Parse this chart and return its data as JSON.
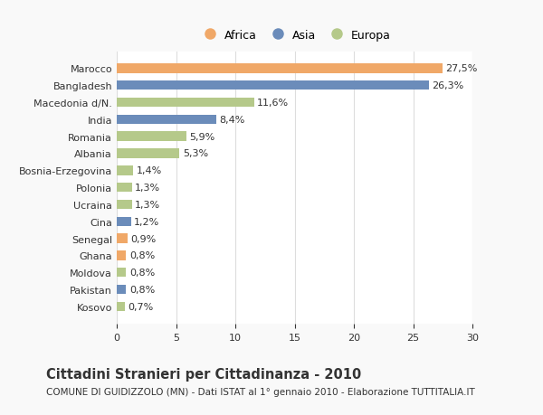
{
  "categories": [
    "Kosovo",
    "Pakistan",
    "Moldova",
    "Ghana",
    "Senegal",
    "Cina",
    "Ucraina",
    "Polonia",
    "Bosnia-Erzegovina",
    "Albania",
    "Romania",
    "India",
    "Macedonia d/N.",
    "Bangladesh",
    "Marocco"
  ],
  "values": [
    0.7,
    0.8,
    0.8,
    0.8,
    0.9,
    1.2,
    1.3,
    1.3,
    1.4,
    5.3,
    5.9,
    8.4,
    11.6,
    26.3,
    27.5
  ],
  "labels": [
    "0,7%",
    "0,8%",
    "0,8%",
    "0,8%",
    "0,9%",
    "1,2%",
    "1,3%",
    "1,3%",
    "1,4%",
    "5,3%",
    "5,9%",
    "8,4%",
    "11,6%",
    "26,3%",
    "27,5%"
  ],
  "colors": [
    "#b5c98a",
    "#6b8cba",
    "#b5c98a",
    "#f0a868",
    "#f0a868",
    "#6b8cba",
    "#b5c98a",
    "#b5c98a",
    "#b5c98a",
    "#b5c98a",
    "#b5c98a",
    "#6b8cba",
    "#b5c98a",
    "#6b8cba",
    "#f0a868"
  ],
  "continent": [
    "Europa",
    "Asia",
    "Europa",
    "Africa",
    "Africa",
    "Asia",
    "Europa",
    "Europa",
    "Europa",
    "Europa",
    "Europa",
    "Asia",
    "Europa",
    "Asia",
    "Africa"
  ],
  "legend_labels": [
    "Africa",
    "Asia",
    "Europa"
  ],
  "legend_colors": [
    "#f0a868",
    "#6b8cba",
    "#b5c98a"
  ],
  "title": "Cittadini Stranieri per Cittadinanza - 2010",
  "subtitle": "COMUNE DI GUIDIZZOLO (MN) - Dati ISTAT al 1° gennaio 2010 - Elaborazione TUTTITALIA.IT",
  "xlim": [
    0,
    30
  ],
  "xticks": [
    0,
    5,
    10,
    15,
    20,
    25,
    30
  ],
  "background_color": "#f9f9f9",
  "bar_background": "#ffffff",
  "grid_color": "#dddddd",
  "text_color": "#333333",
  "label_fontsize": 8,
  "tick_fontsize": 8,
  "title_fontsize": 10.5,
  "subtitle_fontsize": 7.5
}
